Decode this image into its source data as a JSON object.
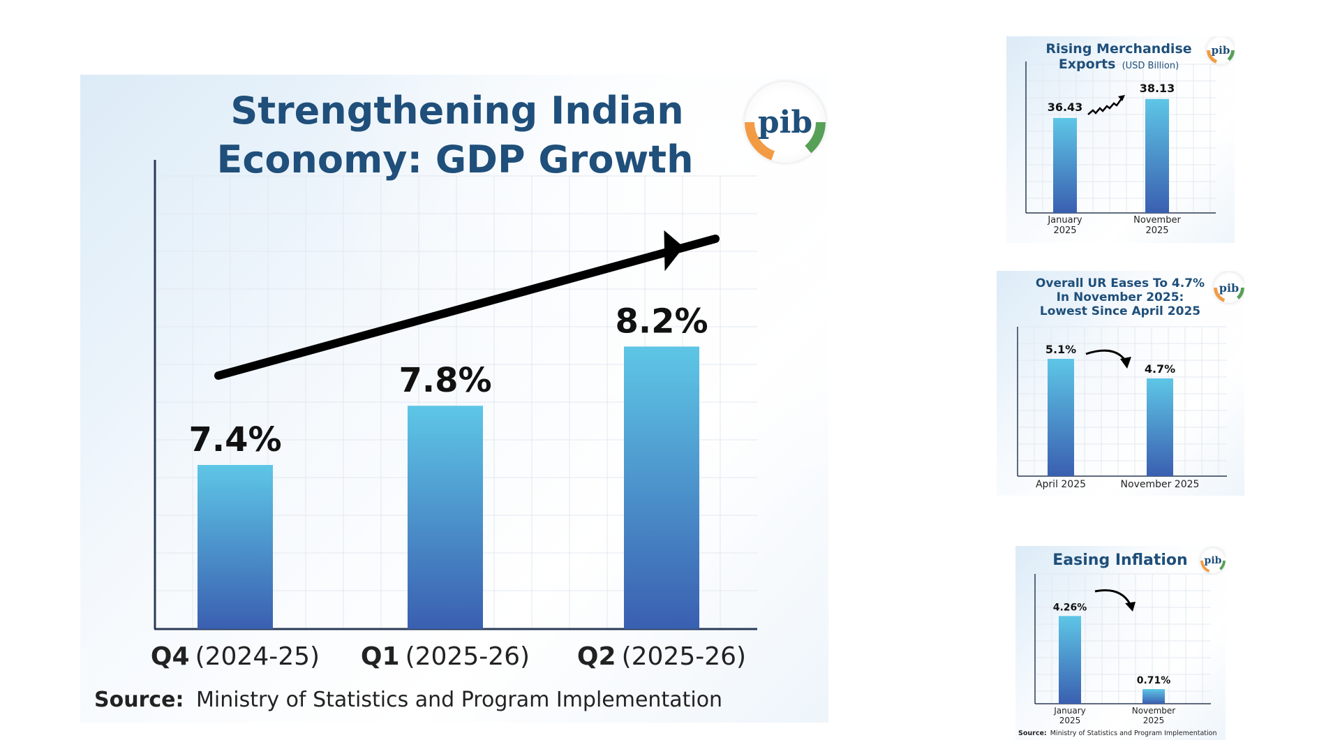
{
  "chart_data": [
    {
      "type": "bar",
      "title": "Strengthening Indian Economy: GDP Growth",
      "title_lines": [
        "Strengthening Indian",
        "Economy: GDP Growth"
      ],
      "categories": [
        {
          "bold": "Q4",
          "rest": "(2024-25)"
        },
        {
          "bold": "Q1",
          "rest": "(2025-26)"
        },
        {
          "bold": "Q2",
          "rest": "(2025-26)"
        }
      ],
      "values": [
        7.4,
        7.8,
        8.2
      ],
      "value_labels": [
        "7.4%",
        "7.8%",
        "8.2%"
      ],
      "source_label": "Source:",
      "source_text": "Ministry of Statistics and Program Implementation",
      "logo_text": "pib",
      "grid": true,
      "trend_arrow": "up",
      "colors": {
        "title": "#1f4f7a",
        "bar_top": "#5ec6e6",
        "bar_bottom": "#3a5fb0",
        "axis": "#2a3a55"
      }
    },
    {
      "type": "bar",
      "title": "Rising Merchandise Exports",
      "title_lines": [
        "Rising Merchandise",
        "Exports"
      ],
      "unit": "(USD Billion)",
      "categories": [
        [
          "January",
          "2025"
        ],
        [
          "November",
          "2025"
        ]
      ],
      "values": [
        36.43,
        38.13
      ],
      "value_labels": [
        "36.43",
        "38.13"
      ],
      "logo_text": "pib",
      "grid": true,
      "trend_arrow": "up"
    },
    {
      "type": "bar",
      "title": "Overall UR Eases To 4.7% In November 2025: Lowest Since April 2025",
      "title_lines": [
        "Overall UR Eases To 4.7%",
        "In November 2025:",
        "Lowest Since April 2025"
      ],
      "categories": [
        [
          "April 2025"
        ],
        [
          "November 2025"
        ]
      ],
      "values": [
        5.1,
        4.7
      ],
      "value_labels": [
        "5.1%",
        "4.7%"
      ],
      "logo_text": "pib",
      "grid": true,
      "trend_arrow": "down"
    },
    {
      "type": "bar",
      "title": "Easing Inflation",
      "title_lines": [
        "Easing Inflation"
      ],
      "categories": [
        [
          "January",
          "2025"
        ],
        [
          "November",
          "2025"
        ]
      ],
      "values": [
        4.26,
        0.71
      ],
      "value_labels": [
        "4.26%",
        "0.71%"
      ],
      "source_label": "Source:",
      "source_text": "Ministry of Statistics and Program Implementation",
      "logo_text": "pib",
      "grid": true,
      "trend_arrow": "down"
    }
  ]
}
